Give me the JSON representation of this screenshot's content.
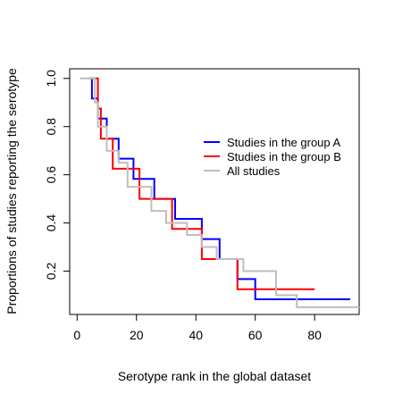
{
  "chart_data": {
    "type": "line",
    "step": true,
    "title": "",
    "xlabel": "Serotype rank in the global dataset",
    "ylabel": "Proportions of studies reporting the serotype",
    "xlim": [
      -2.5,
      95
    ],
    "ylim": [
      0.02,
      1.04
    ],
    "xticks": [
      0,
      20,
      40,
      60,
      80
    ],
    "yticks": [
      0.2,
      0.4,
      0.6,
      0.8,
      1.0
    ],
    "xtick_labels": [
      "0",
      "20",
      "40",
      "60",
      "80"
    ],
    "ytick_labels": [
      "0.2",
      "0.4",
      "0.6",
      "0.8",
      "1.0"
    ],
    "grid": false,
    "legend": {
      "position": "right-center",
      "entries": [
        "Studies in the group A",
        "Studies in the group B",
        "All studies"
      ]
    },
    "series": [
      {
        "name": "Studies in the group A",
        "color": "#0000ff",
        "x": [
          4,
          5,
          6,
          7,
          9,
          10,
          13,
          14,
          18,
          19,
          25,
          26,
          32,
          33,
          41,
          42,
          47,
          48,
          53,
          54,
          59,
          60,
          92
        ],
        "y": [
          1.0,
          0.917,
          0.917,
          0.833,
          0.833,
          0.75,
          0.75,
          0.667,
          0.667,
          0.583,
          0.583,
          0.5,
          0.5,
          0.417,
          0.417,
          0.333,
          0.333,
          0.25,
          0.25,
          0.167,
          0.167,
          0.083,
          0.083
        ]
      },
      {
        "name": "Studies in the group B",
        "color": "#ff0000",
        "x": [
          5,
          6,
          7,
          8,
          11,
          12,
          19,
          20,
          21,
          22,
          31,
          32,
          41,
          42,
          44,
          45,
          53,
          54,
          80
        ],
        "y": [
          1.0,
          1.0,
          0.875,
          0.75,
          0.75,
          0.625,
          0.625,
          0.625,
          0.5,
          0.5,
          0.5,
          0.375,
          0.375,
          0.25,
          0.25,
          0.25,
          0.25,
          0.125,
          0.125
        ]
      },
      {
        "name": "All studies",
        "color": "#bebebe",
        "x": [
          1,
          5,
          6,
          7,
          9,
          10,
          13,
          14,
          16,
          17,
          24,
          25,
          29,
          30,
          36,
          37,
          41,
          42,
          46,
          47,
          55,
          56,
          66,
          67,
          73,
          74,
          95
        ],
        "y": [
          1.0,
          1.0,
          0.9,
          0.8,
          0.8,
          0.7,
          0.7,
          0.65,
          0.65,
          0.55,
          0.55,
          0.45,
          0.45,
          0.4,
          0.4,
          0.35,
          0.35,
          0.3,
          0.3,
          0.25,
          0.25,
          0.2,
          0.2,
          0.1,
          0.1,
          0.05,
          0.05
        ]
      }
    ]
  }
}
